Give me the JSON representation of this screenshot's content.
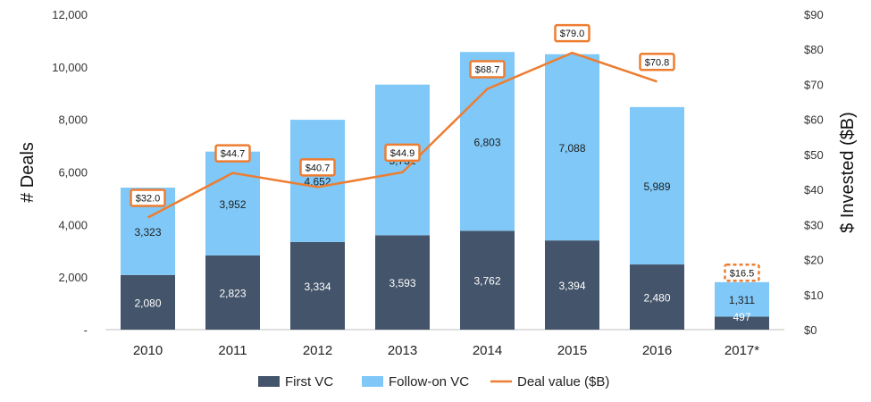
{
  "chart_data": {
    "type": "bar",
    "categories": [
      "2010",
      "2011",
      "2012",
      "2013",
      "2014",
      "2015",
      "2016",
      "2017*"
    ],
    "series": [
      {
        "name": "First VC",
        "type": "stacked-bar",
        "axis": "left",
        "color": "#44546a",
        "values": [
          2080,
          2823,
          3334,
          3593,
          3762,
          3394,
          2480,
          497
        ]
      },
      {
        "name": "Follow-on VC",
        "type": "stacked-bar",
        "axis": "left",
        "color": "#7fc8f8",
        "values": [
          3323,
          3952,
          4652,
          5732,
          6803,
          7088,
          5989,
          1311
        ]
      },
      {
        "name": "Deal value ($B)",
        "type": "line",
        "axis": "right",
        "color": "#ed7d31",
        "values": [
          32.0,
          44.7,
          40.7,
          44.9,
          68.7,
          79.0,
          70.8,
          16.5
        ]
      }
    ],
    "bar_labels": {
      "first": [
        "2,080",
        "2,823",
        "3,334",
        "3,593",
        "3,762",
        "3,394",
        "2,480",
        "497"
      ],
      "followon": [
        "3,323",
        "3,952",
        "4,652",
        "5,732",
        "6,803",
        "7,088",
        "5,989",
        "1,311"
      ]
    },
    "value_labels": [
      "$32.0",
      "$44.7",
      "$40.7",
      "$44.9",
      "$68.7",
      "$79.0",
      "$70.8",
      "$16.5"
    ],
    "ylabel": "# Deals",
    "y2label": "$ Invested ($B)",
    "ylim": [
      0,
      12000
    ],
    "y2lim": [
      0,
      90
    ],
    "y_ticks": [
      "-",
      "2,000",
      "4,000",
      "6,000",
      "8,000",
      "10,000",
      "12,000"
    ],
    "y2_ticks": [
      "$0",
      "$10",
      "$20",
      "$30",
      "$40",
      "$50",
      "$60",
      "$70",
      "$80",
      "$90"
    ],
    "legend": {
      "position": "bottom",
      "items": [
        {
          "label": "First VC",
          "color": "#44546a",
          "shape": "box"
        },
        {
          "label": "Follow-on VC",
          "color": "#7fc8f8",
          "shape": "box"
        },
        {
          "label": "Deal value ($B)",
          "color": "#ed7d31",
          "shape": "line"
        }
      ]
    },
    "grid": false
  }
}
